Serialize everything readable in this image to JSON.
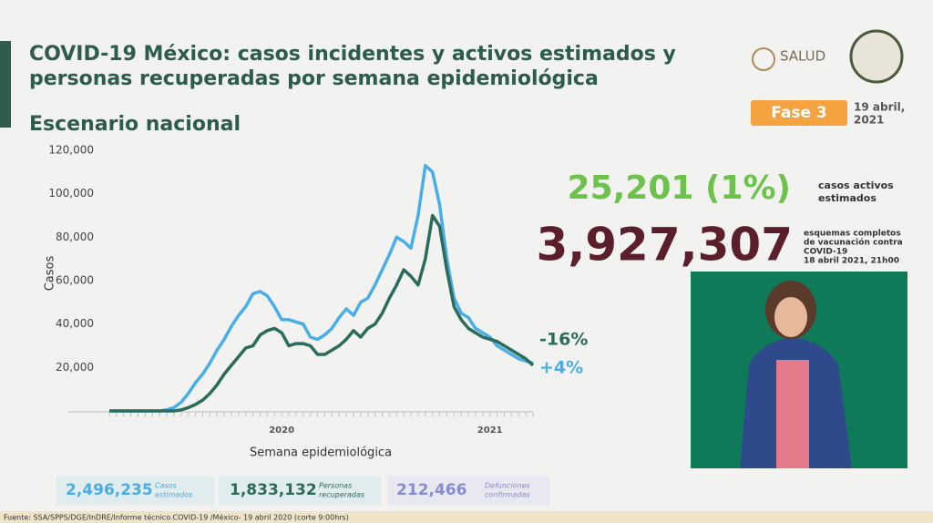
{
  "header": {
    "title_line1": "COVID-19 México: casos incidentes y activos estimados y",
    "title_line2": "personas recuperadas por semana epidemiológica",
    "subtitle": "Escenario nacional",
    "logo_text": "SALUD",
    "phase": "Fase 3",
    "date_line1": "19 abril,",
    "date_line2": "2021"
  },
  "chart_data": {
    "type": "line",
    "y_label": "Casos",
    "x_label": "Semana epidemiológica",
    "categories": [
      null,
      null,
      null,
      null,
      null,
      null,
      null,
      null,
      null,
      null,
      null,
      null,
      null,
      null,
      null,
      null,
      null,
      null,
      null,
      null,
      null,
      null,
      null,
      null,
      "2020",
      null,
      null,
      null,
      null,
      null,
      null,
      null,
      null,
      null,
      null,
      null,
      null,
      null,
      null,
      null,
      null,
      null,
      null,
      null,
      null,
      null,
      null,
      null,
      null,
      null,
      null,
      null,
      null,
      "2021",
      null,
      null,
      null,
      null,
      null,
      null
    ],
    "series": [
      {
        "color": "#4aaee6",
        "values": [
          0,
          0,
          0,
          0,
          0,
          0,
          0,
          0,
          500,
          1500,
          4000,
          8000,
          13000,
          17000,
          22000,
          28000,
          33000,
          39000,
          44000,
          48000,
          54000,
          55000,
          53000,
          48000,
          42000,
          42000,
          41000,
          40000,
          34000,
          33000,
          35000,
          38000,
          43000,
          47000,
          44000,
          50000,
          52000,
          58000,
          65000,
          72000,
          80000,
          78000,
          75000,
          90000,
          113000,
          110000,
          95000,
          70000,
          52000,
          45000,
          43000,
          38000,
          36000,
          34000,
          30000,
          28000,
          26000,
          24000,
          23000,
          22000
        ]
      },
      {
        "color": "#2b6b5b",
        "values": [
          0,
          0,
          0,
          0,
          0,
          0,
          0,
          0,
          0,
          0,
          500,
          1500,
          3000,
          5000,
          8000,
          12000,
          17000,
          21000,
          25000,
          29000,
          30000,
          35000,
          37000,
          38000,
          36000,
          30000,
          31000,
          31000,
          30000,
          26000,
          26000,
          28000,
          30000,
          33000,
          37000,
          34000,
          38000,
          40000,
          45000,
          52000,
          58000,
          65000,
          62000,
          58000,
          70000,
          90000,
          85000,
          65000,
          48000,
          42000,
          38000,
          36000,
          34000,
          33000,
          32000,
          30000,
          28000,
          26000,
          24000,
          21000
        ]
      }
    ],
    "ylim": [
      0,
      120000
    ],
    "yticks": [
      {
        "value": 20000,
        "label": "20,000"
      },
      {
        "value": 40000,
        "label": "40,000"
      },
      {
        "value": 60000,
        "label": "60,000"
      },
      {
        "value": 80000,
        "label": "80,000"
      },
      {
        "value": 100000,
        "label": "100,000"
      },
      {
        "value": 120000,
        "label": "120,000"
      }
    ],
    "grid": false,
    "annotations": [
      {
        "text": "-16%",
        "color": "#2b6b5b"
      },
      {
        "text": "+4%",
        "color": "#4aaee6"
      }
    ]
  },
  "highlights": {
    "active": "25,201 (1%)",
    "active_label_1": "casos activos",
    "active_label_2": "estimados",
    "vaccination": "3,927,307",
    "vacc_label_1": "esquemas completos",
    "vacc_label_2": "de vacunación contra",
    "vacc_label_3": "COVID-19",
    "vacc_label_4": "18 abril 2021, 21h00"
  },
  "stats": [
    {
      "value": "2,496,235",
      "label_1": "Casos",
      "label_2": "estimados"
    },
    {
      "value": "1,833,132",
      "label_1": "Personas",
      "label_2": "recuperadas"
    },
    {
      "value": "212,466",
      "label_1": "Defunciones",
      "label_2": "confirmadas"
    }
  ],
  "footer": "Fuente: SSA/SPPS/DGE/InDRE/Informe técnico.COVID-19 /México- 19 abril 2020 (corte 9:00hrs)"
}
